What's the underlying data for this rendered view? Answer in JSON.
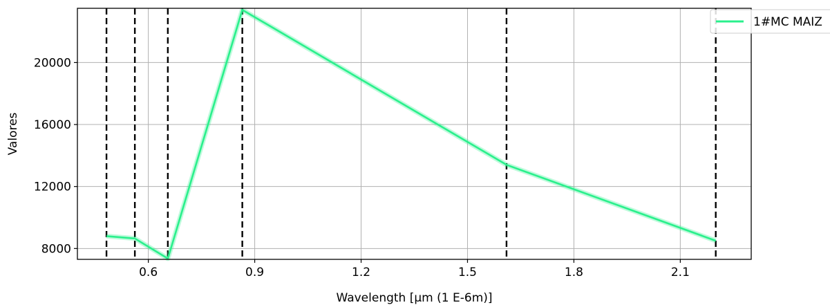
{
  "chart_data": {
    "type": "line",
    "title": "",
    "xlabel": "Wavelength [µm (1 E-6m)]",
    "ylabel": "Valores",
    "xlim": [
      0.4,
      2.3
    ],
    "ylim": [
      7300,
      23500
    ],
    "xticks": [
      0.6,
      0.9,
      1.2,
      1.5,
      1.8,
      2.1
    ],
    "xtick_labels": [
      "0.6",
      "0.9",
      "1.2",
      "1.5",
      "1.8",
      "2.1"
    ],
    "yticks": [
      8000,
      12000,
      16000,
      20000
    ],
    "ytick_labels": [
      "8000",
      "12000",
      "16000",
      "20000"
    ],
    "grid": true,
    "legend_position": "top-right",
    "series": [
      {
        "name": "1#MC MAIZ",
        "color": "#2af08c",
        "x": [
          0.482,
          0.562,
          0.655,
          0.865,
          1.61,
          2.2
        ],
        "y": [
          8800,
          8650,
          7350,
          23400,
          13400,
          8500
        ]
      }
    ],
    "vertical_lines": {
      "style": "dashed",
      "color": "#000000",
      "x": [
        0.482,
        0.562,
        0.655,
        0.865,
        1.61,
        2.2
      ]
    }
  }
}
